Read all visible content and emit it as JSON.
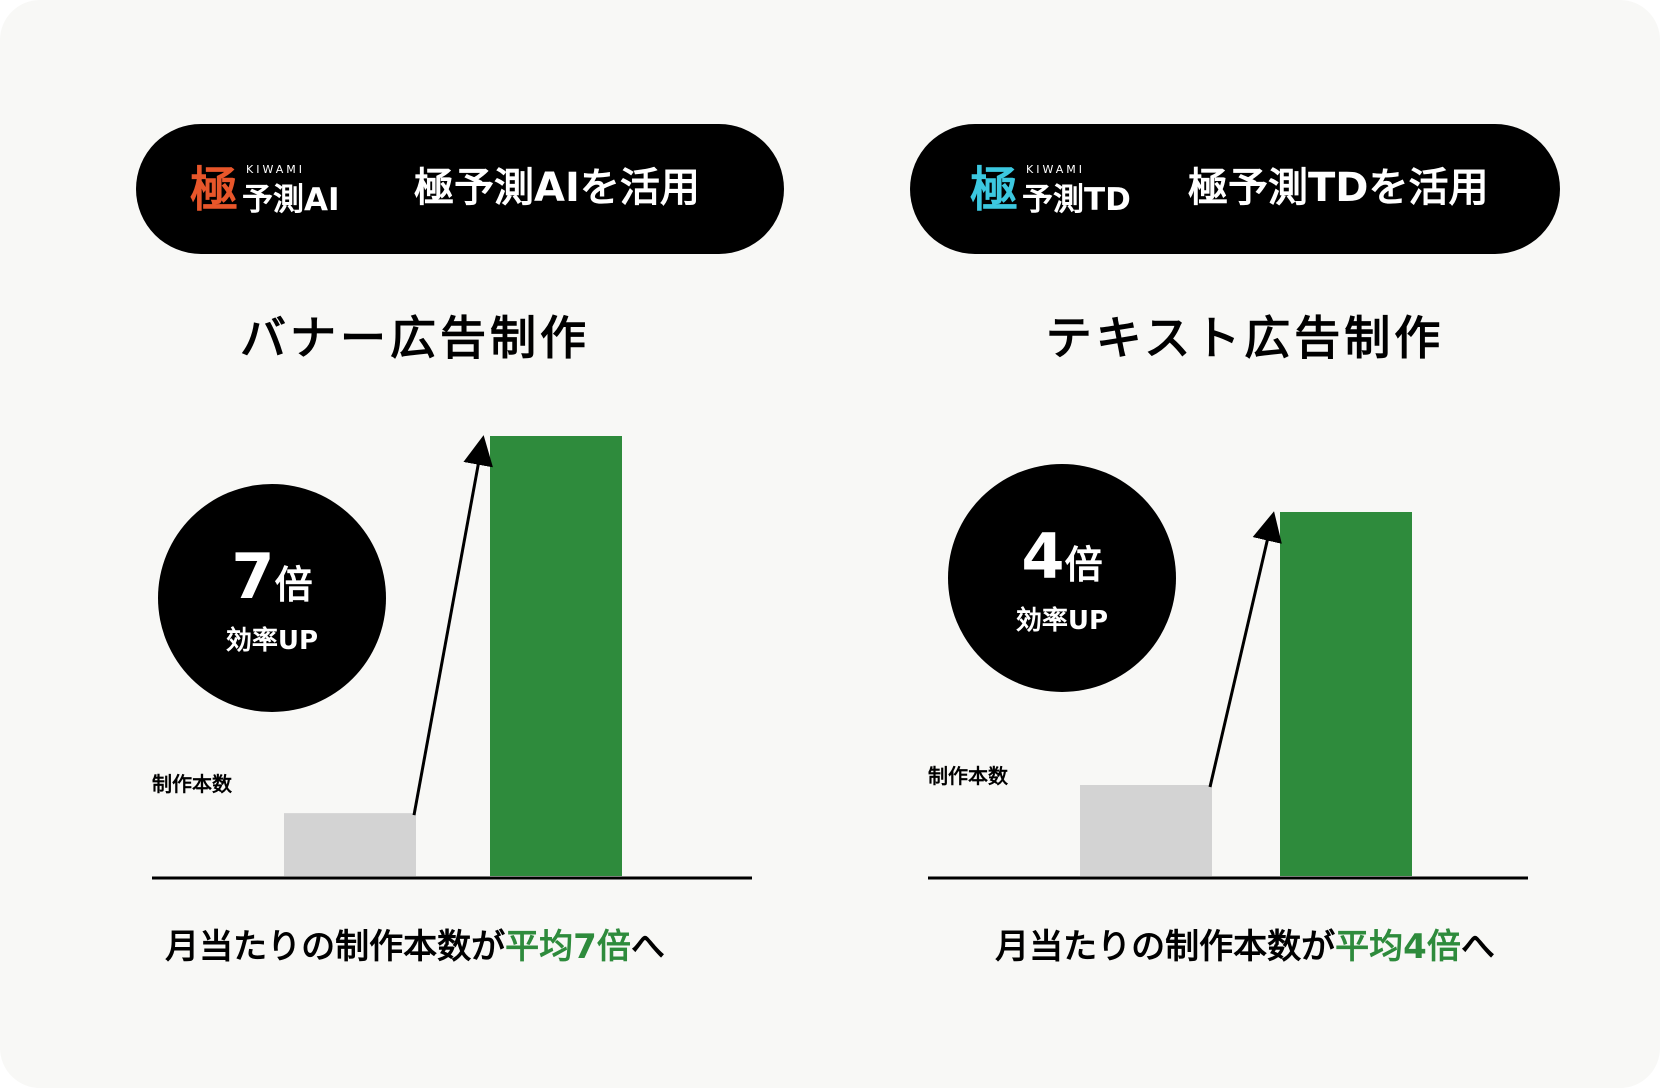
{
  "colors": {
    "background": "#f8f8f6",
    "pill": "#000000",
    "bar_before": "#d3d3d3",
    "bar_after": "#2e8b3c",
    "highlight": "#2e8b3c",
    "logo_ai": "#e8562a",
    "logo_td": "#3cc8e0"
  },
  "panels": [
    {
      "logo": {
        "kanji": "極",
        "kiwami": "KIWAMI",
        "word": "予測AI"
      },
      "pill_text": "極予測AIを活用",
      "subtitle": "バナー広告制作",
      "bubble": {
        "number": "7",
        "unit": "倍",
        "sub": "効率UP"
      },
      "caption": {
        "prefix": "月当たりの制作本数が",
        "highlight": "平均7倍",
        "suffix": "へ"
      }
    },
    {
      "logo": {
        "kanji": "極",
        "kiwami": "KIWAMI",
        "word": "予測TD"
      },
      "pill_text": "極予測TDを活用",
      "subtitle": "テキスト広告制作",
      "bubble": {
        "number": "4",
        "unit": "倍",
        "sub": "効率UP"
      },
      "caption": {
        "prefix": "月当たりの制作本数が",
        "highlight": "平均4倍",
        "suffix": "へ"
      }
    }
  ],
  "chart_data": [
    {
      "type": "bar",
      "title": "バナー広告制作",
      "ylabel": "制作本数",
      "categories": [
        "",
        ""
      ],
      "values": [
        1,
        7
      ],
      "ylim": [
        0,
        7
      ],
      "grid": false,
      "annotation": "7倍 効率UP"
    },
    {
      "type": "bar",
      "title": "テキスト広告制作",
      "ylabel": "制作本数",
      "categories": [
        "",
        ""
      ],
      "values": [
        1,
        4
      ],
      "ylim": [
        0,
        4
      ],
      "grid": false,
      "annotation": "4倍 効率UP"
    }
  ]
}
